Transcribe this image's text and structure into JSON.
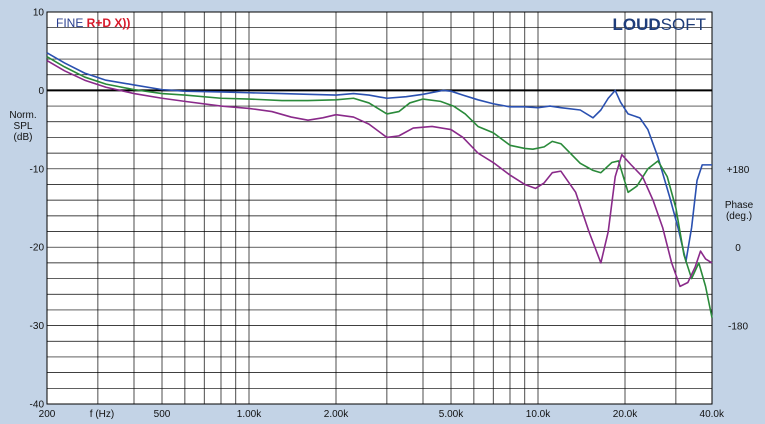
{
  "chart_data": {
    "type": "line",
    "brand": {
      "fine_prefix": "FINE ",
      "fine_suffix": "R+D X))",
      "loudsoft_bold": "LOUD",
      "loudsoft_light": "SOFT"
    },
    "x_scale": "log",
    "xlim": [
      200,
      40000
    ],
    "ylim": [
      -40,
      10
    ],
    "grid": true,
    "ylabel_lines": [
      "Norm.",
      "SPL",
      "(dB)"
    ],
    "phase_label_lines": [
      "Phase",
      "(deg.)"
    ],
    "xlabel": "f (Hz)",
    "x_ticks": [
      {
        "value": 200,
        "label": "200"
      },
      {
        "value": 500,
        "label": "500"
      },
      {
        "value": 1000,
        "label": "1.00k"
      },
      {
        "value": 2000,
        "label": "2.00k"
      },
      {
        "value": 5000,
        "label": "5.00k"
      },
      {
        "value": 10000,
        "label": "10.0k"
      },
      {
        "value": 20000,
        "label": "20.0k"
      },
      {
        "value": 40000,
        "label": "40.0k"
      }
    ],
    "y_ticks": [
      {
        "value": 10,
        "label": "10"
      },
      {
        "value": 0,
        "label": "0"
      },
      {
        "value": -10,
        "label": "-10"
      },
      {
        "value": -20,
        "label": "-20"
      },
      {
        "value": -30,
        "label": "-30"
      },
      {
        "value": -40,
        "label": "-40"
      }
    ],
    "phase_ticks": [
      {
        "value": -10,
        "label": "+180"
      },
      {
        "value": -20,
        "label": "0"
      },
      {
        "value": -30,
        "label": "-180"
      }
    ],
    "colors": {
      "background": "#c3d3e6",
      "plot": "#ffffff",
      "grid": "#000000",
      "zero_line": "#000000",
      "fine": "#2a3f8f",
      "fine_red": "#d8192a",
      "loudsoft": "#1f3d7a"
    },
    "series": [
      {
        "color": "#2a50b0",
        "points": [
          [
            200,
            4.8
          ],
          [
            230,
            3.5
          ],
          [
            270,
            2.2
          ],
          [
            320,
            1.3
          ],
          [
            400,
            0.7
          ],
          [
            500,
            0.1
          ],
          [
            600,
            -0.1
          ],
          [
            800,
            -0.2
          ],
          [
            1000,
            -0.3
          ],
          [
            1300,
            -0.4
          ],
          [
            1600,
            -0.5
          ],
          [
            2000,
            -0.6
          ],
          [
            2300,
            -0.4
          ],
          [
            2600,
            -0.6
          ],
          [
            3000,
            -1.0
          ],
          [
            3500,
            -0.8
          ],
          [
            4000,
            -0.5
          ],
          [
            4700,
            0.0
          ],
          [
            5000,
            -0.1
          ],
          [
            5500,
            -0.6
          ],
          [
            6200,
            -1.2
          ],
          [
            7000,
            -1.7
          ],
          [
            8000,
            -2.1
          ],
          [
            9000,
            -2.1
          ],
          [
            10000,
            -2.2
          ],
          [
            11000,
            -2.0
          ],
          [
            12000,
            -2.2
          ],
          [
            14000,
            -2.5
          ],
          [
            15500,
            -3.5
          ],
          [
            16500,
            -2.5
          ],
          [
            17500,
            -1.0
          ],
          [
            18500,
            0.0
          ],
          [
            19300,
            -1.5
          ],
          [
            20500,
            -3.0
          ],
          [
            22500,
            -3.5
          ],
          [
            24000,
            -5.0
          ],
          [
            26000,
            -8.5
          ],
          [
            28500,
            -13.5
          ],
          [
            30500,
            -17.5
          ],
          [
            32500,
            -21.8
          ],
          [
            34000,
            -17.5
          ],
          [
            35500,
            -11.5
          ],
          [
            37000,
            -9.5
          ],
          [
            40000,
            -9.5
          ]
        ]
      },
      {
        "color": "#2a8a3a",
        "points": [
          [
            200,
            4.3
          ],
          [
            230,
            3.0
          ],
          [
            270,
            1.7
          ],
          [
            320,
            0.8
          ],
          [
            400,
            0.1
          ],
          [
            500,
            -0.4
          ],
          [
            600,
            -0.6
          ],
          [
            800,
            -1.0
          ],
          [
            1000,
            -1.1
          ],
          [
            1300,
            -1.3
          ],
          [
            1600,
            -1.3
          ],
          [
            2000,
            -1.2
          ],
          [
            2300,
            -1.0
          ],
          [
            2600,
            -1.6
          ],
          [
            3000,
            -3.0
          ],
          [
            3300,
            -2.7
          ],
          [
            3600,
            -1.6
          ],
          [
            4000,
            -1.1
          ],
          [
            4600,
            -1.4
          ],
          [
            5100,
            -2.0
          ],
          [
            5600,
            -3.0
          ],
          [
            6200,
            -4.6
          ],
          [
            7000,
            -5.4
          ],
          [
            8000,
            -7.0
          ],
          [
            9000,
            -7.4
          ],
          [
            9600,
            -7.5
          ],
          [
            10500,
            -7.2
          ],
          [
            11200,
            -6.5
          ],
          [
            12000,
            -6.8
          ],
          [
            14000,
            -9.3
          ],
          [
            15500,
            -10.2
          ],
          [
            16500,
            -10.5
          ],
          [
            18000,
            -9.2
          ],
          [
            19000,
            -9.0
          ],
          [
            20500,
            -13.0
          ],
          [
            22000,
            -12.2
          ],
          [
            24000,
            -10.0
          ],
          [
            26000,
            -9.0
          ],
          [
            28000,
            -11.0
          ],
          [
            30000,
            -15.0
          ],
          [
            32000,
            -21.0
          ],
          [
            34000,
            -24.0
          ],
          [
            36000,
            -22.0
          ],
          [
            38000,
            -25.0
          ],
          [
            40000,
            -29.0
          ]
        ]
      },
      {
        "color": "#8a2a8a",
        "points": [
          [
            200,
            3.8
          ],
          [
            230,
            2.5
          ],
          [
            270,
            1.3
          ],
          [
            320,
            0.4
          ],
          [
            400,
            -0.4
          ],
          [
            500,
            -1.0
          ],
          [
            600,
            -1.4
          ],
          [
            800,
            -2.0
          ],
          [
            1000,
            -2.3
          ],
          [
            1200,
            -2.7
          ],
          [
            1400,
            -3.4
          ],
          [
            1600,
            -3.8
          ],
          [
            1800,
            -3.5
          ],
          [
            2000,
            -3.1
          ],
          [
            2300,
            -3.4
          ],
          [
            2600,
            -4.3
          ],
          [
            3000,
            -6.0
          ],
          [
            3300,
            -5.8
          ],
          [
            3700,
            -4.8
          ],
          [
            4300,
            -4.6
          ],
          [
            5000,
            -5.0
          ],
          [
            5500,
            -6.0
          ],
          [
            6200,
            -8.0
          ],
          [
            7000,
            -9.2
          ],
          [
            8000,
            -10.8
          ],
          [
            9000,
            -12.0
          ],
          [
            9800,
            -12.5
          ],
          [
            10500,
            -11.8
          ],
          [
            11200,
            -10.5
          ],
          [
            12000,
            -10.3
          ],
          [
            13500,
            -13.0
          ],
          [
            15000,
            -18.0
          ],
          [
            16500,
            -22.0
          ],
          [
            17500,
            -18.0
          ],
          [
            18500,
            -11.0
          ],
          [
            19500,
            -8.2
          ],
          [
            21000,
            -9.5
          ],
          [
            23000,
            -11.0
          ],
          [
            25000,
            -14.0
          ],
          [
            27000,
            -17.5
          ],
          [
            29000,
            -22.0
          ],
          [
            31000,
            -25.0
          ],
          [
            33000,
            -24.5
          ],
          [
            35000,
            -22.5
          ],
          [
            36500,
            -20.5
          ],
          [
            38000,
            -21.5
          ],
          [
            40000,
            -22.0
          ]
        ]
      }
    ]
  }
}
